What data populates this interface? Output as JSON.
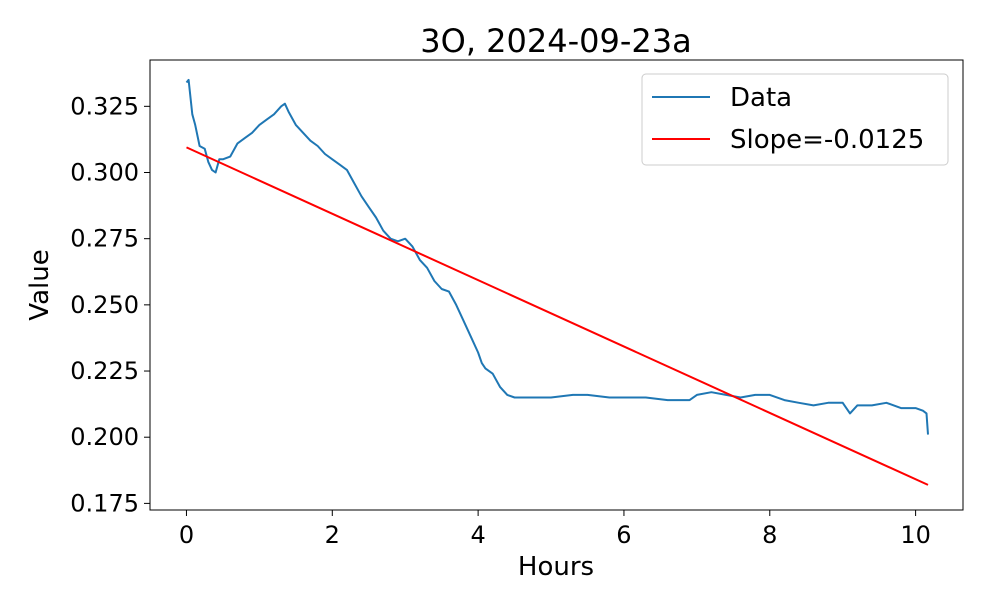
{
  "chart_data": {
    "type": "line",
    "title": "3O, 2024-09-23a",
    "xlabel": "Hours",
    "ylabel": "Value",
    "xlim": [
      -0.5,
      10.65
    ],
    "ylim": [
      0.1725,
      0.3425
    ],
    "xticks": [
      0,
      2,
      4,
      6,
      8,
      10
    ],
    "xtick_labels": [
      "0",
      "2",
      "4",
      "6",
      "8",
      "10"
    ],
    "yticks": [
      0.175,
      0.2,
      0.225,
      0.25,
      0.275,
      0.3,
      0.325
    ],
    "ytick_labels": [
      "0.175",
      "0.200",
      "0.225",
      "0.250",
      "0.275",
      "0.300",
      "0.325"
    ],
    "grid": false,
    "legend_position": "top-right",
    "series": [
      {
        "name": "Data",
        "color": "#1f77b4",
        "x": [
          0,
          0.03,
          0.08,
          0.12,
          0.18,
          0.25,
          0.3,
          0.35,
          0.4,
          0.45,
          0.5,
          0.6,
          0.7,
          0.8,
          0.9,
          1.0,
          1.1,
          1.2,
          1.3,
          1.35,
          1.4,
          1.5,
          1.6,
          1.7,
          1.8,
          1.9,
          2.0,
          2.1,
          2.2,
          2.3,
          2.4,
          2.5,
          2.6,
          2.7,
          2.8,
          2.9,
          3.0,
          3.1,
          3.2,
          3.3,
          3.4,
          3.5,
          3.6,
          3.7,
          3.8,
          3.9,
          4.0,
          4.05,
          4.1,
          4.2,
          4.3,
          4.4,
          4.5,
          4.7,
          5.0,
          5.3,
          5.5,
          5.8,
          6.0,
          6.3,
          6.6,
          6.9,
          7.0,
          7.2,
          7.4,
          7.6,
          7.8,
          8.0,
          8.2,
          8.4,
          8.6,
          8.8,
          9.0,
          9.1,
          9.2,
          9.4,
          9.6,
          9.8,
          10.0,
          10.1,
          10.15,
          10.17
        ],
        "y": [
          0.334,
          0.335,
          0.322,
          0.318,
          0.31,
          0.309,
          0.304,
          0.301,
          0.3,
          0.305,
          0.305,
          0.306,
          0.311,
          0.313,
          0.315,
          0.318,
          0.32,
          0.322,
          0.325,
          0.326,
          0.323,
          0.318,
          0.315,
          0.312,
          0.31,
          0.307,
          0.305,
          0.303,
          0.301,
          0.296,
          0.291,
          0.287,
          0.283,
          0.278,
          0.275,
          0.274,
          0.275,
          0.272,
          0.267,
          0.264,
          0.259,
          0.256,
          0.255,
          0.25,
          0.244,
          0.238,
          0.232,
          0.228,
          0.226,
          0.224,
          0.219,
          0.216,
          0.215,
          0.215,
          0.215,
          0.216,
          0.216,
          0.215,
          0.215,
          0.215,
          0.214,
          0.214,
          0.216,
          0.217,
          0.216,
          0.215,
          0.216,
          0.216,
          0.214,
          0.213,
          0.212,
          0.213,
          0.213,
          0.209,
          0.212,
          0.212,
          0.213,
          0.211,
          0.211,
          0.21,
          0.209,
          0.201
        ]
      },
      {
        "name": "Slope=-0.0125",
        "color": "#ff0000",
        "x": [
          0,
          10.17
        ],
        "y": [
          0.3095,
          0.182
        ]
      }
    ]
  }
}
